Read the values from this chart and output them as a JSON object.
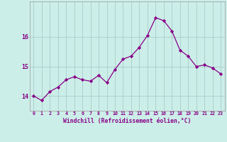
{
  "x": [
    0,
    1,
    2,
    3,
    4,
    5,
    6,
    7,
    8,
    9,
    10,
    11,
    12,
    13,
    14,
    15,
    16,
    17,
    18,
    19,
    20,
    21,
    22,
    23
  ],
  "y": [
    14.0,
    13.85,
    14.15,
    14.3,
    14.55,
    14.65,
    14.55,
    14.5,
    14.7,
    14.45,
    14.9,
    15.25,
    15.35,
    15.65,
    16.05,
    16.65,
    16.55,
    16.2,
    15.55,
    15.35,
    15.0,
    15.05,
    14.95,
    14.75
  ],
  "line_color": "#880088",
  "marker_color": "#880088",
  "bg_color": "#cceee8",
  "grid_color": "#aacccc",
  "xlabel": "Windchill (Refroidissement éolien,°C)",
  "xlabel_color": "#880088",
  "tick_color": "#880088",
  "ylim": [
    13.5,
    17.2
  ],
  "yticks": [
    14,
    15,
    16
  ],
  "xlim": [
    -0.5,
    23.5
  ],
  "xtick_labels": [
    "0",
    "1",
    "2",
    "3",
    "4",
    "5",
    "6",
    "7",
    "8",
    "9",
    "10",
    "11",
    "12",
    "13",
    "14",
    "15",
    "16",
    "17",
    "18",
    "19",
    "20",
    "21",
    "22",
    "23"
  ]
}
